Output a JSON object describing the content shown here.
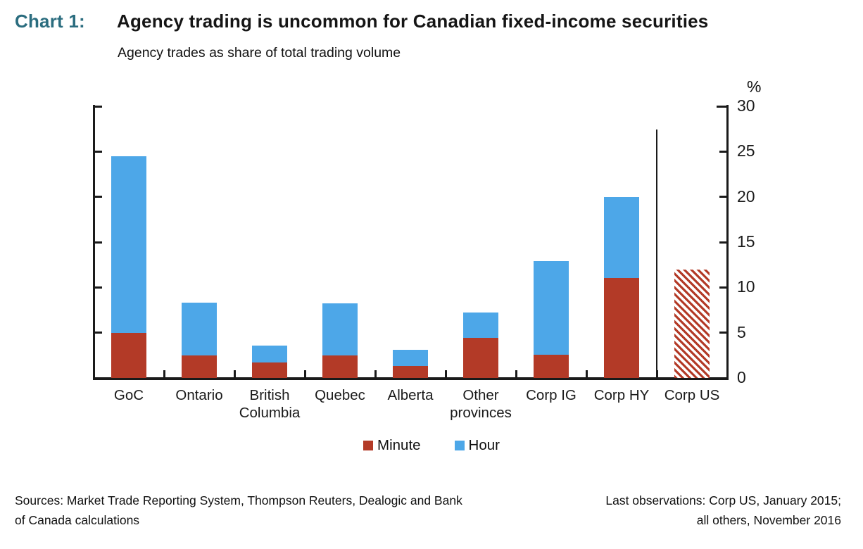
{
  "chart_data": {
    "type": "bar",
    "stacked": true,
    "title_label": "Chart 1:",
    "title": "Agency trading is uncommon for Canadian fixed-income securities",
    "subtitle": "Agency trades as share of total trading volume",
    "unit_label": "%",
    "categories": [
      "GoC",
      "Ontario",
      "British Columbia",
      "Quebec",
      "Alberta",
      "Other provinces",
      "Corp IG",
      "Corp HY",
      "Corp US"
    ],
    "series": [
      {
        "name": "Minute",
        "color": "#b33a27",
        "values": [
          5.0,
          2.5,
          1.7,
          2.5,
          1.3,
          4.4,
          2.6,
          11.0,
          null
        ]
      },
      {
        "name": "Hour",
        "color": "#4da7e8",
        "values": [
          19.5,
          5.8,
          1.9,
          5.7,
          1.8,
          2.8,
          10.3,
          9.0,
          null
        ]
      }
    ],
    "hatched_bar": {
      "category": "Corp US",
      "value": 12.0,
      "style": "red-diagonal-hatch"
    },
    "separator_line": {
      "after_category": "Corp HY",
      "top_value": 27.4
    },
    "ylim": [
      0,
      30
    ],
    "yticks": [
      0,
      5,
      10,
      15,
      20,
      25,
      30
    ],
    "y_axis_side": "right",
    "grid": false,
    "legend_position": "bottom-center"
  },
  "colors": {
    "minute": "#b33a27",
    "hour": "#4da7e8",
    "title_accent": "#2b6d7f",
    "axis": "#1a1a1a"
  },
  "footnotes": {
    "sources_line1": "Sources: Market Trade Reporting System, Thompson Reuters, Dealogic and Bank",
    "sources_line2": "of Canada calculations",
    "observations_line1": "Last observations: Corp US, January 2015;",
    "observations_line2": "all others, November 2016"
  }
}
